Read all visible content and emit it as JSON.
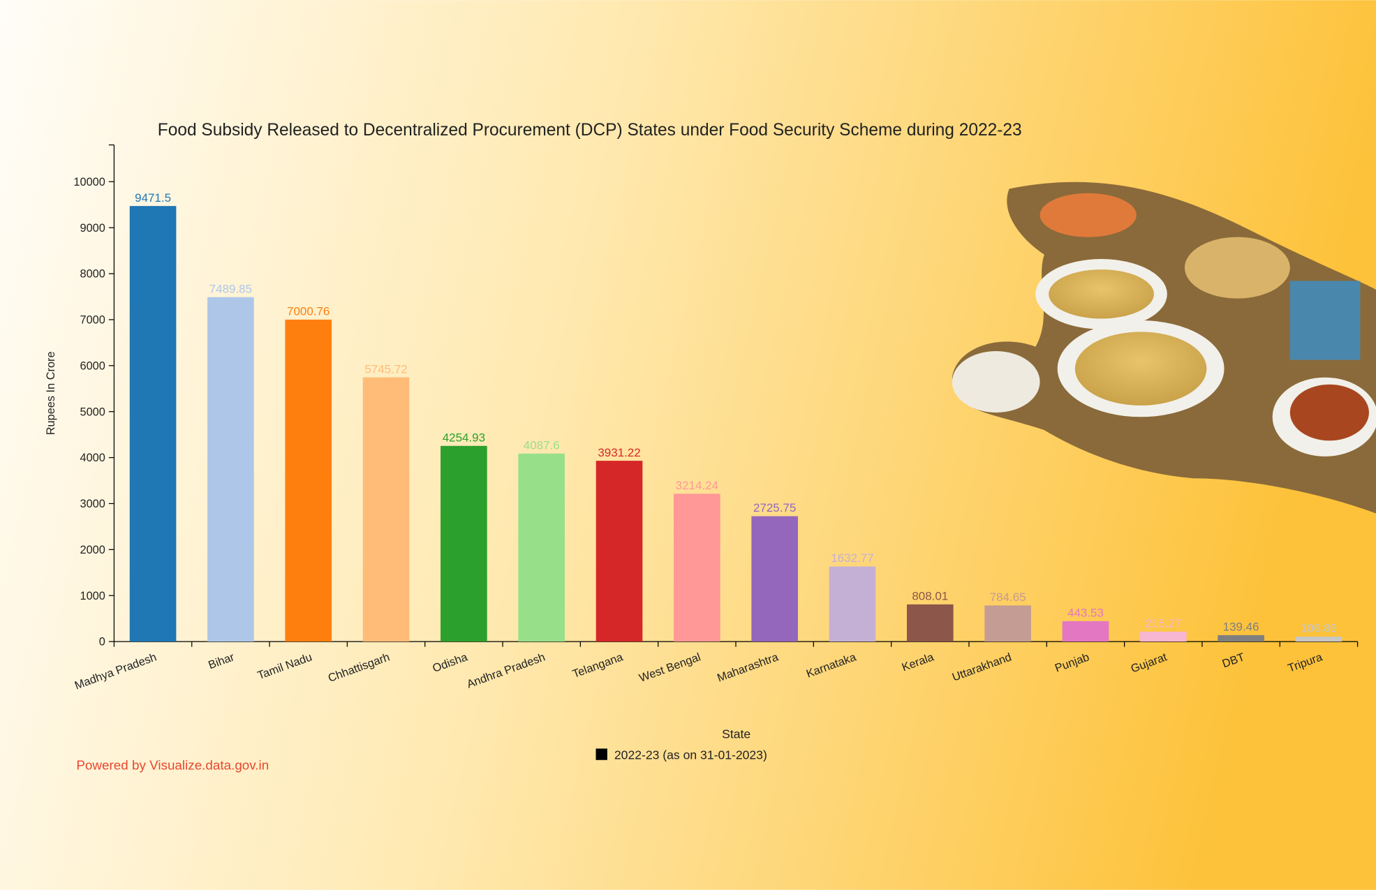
{
  "chart_data": {
    "type": "bar",
    "title": "Food Subsidy Released to Decentralized Procurement (DCP) States under Food Security Scheme during 2022-23",
    "x_label": "State",
    "y_label": "Rupees In Crore",
    "categories": [
      "Madhya Pradesh",
      "Bihar",
      "Tamil Nadu",
      "Chhattisgarh",
      "Odisha",
      "Andhra Pradesh",
      "Telangana",
      "West Bengal",
      "Maharashtra",
      "Karnataka",
      "Kerala",
      "Uttarakhand",
      "Punjab",
      "Gujarat",
      "DBT",
      "Tripura"
    ],
    "series": [
      {
        "name": "2022-23 (as on 31-01-2023)",
        "color": "#000000",
        "values": [
          9471.5,
          7489.85,
          7000.76,
          5745.72,
          4254.93,
          4087.6,
          3931.22,
          3214.24,
          2725.75,
          1632.77,
          808.01,
          784.65,
          443.53,
          215.27,
          139.46,
          106.86
        ]
      }
    ],
    "colors": [
      "#1f77b4",
      "#aec7e8",
      "#ff7f0e",
      "#ffbb78",
      "#2ca02c",
      "#98df8a",
      "#d62728",
      "#ff9896",
      "#9467bd",
      "#c5b0d5",
      "#8c564b",
      "#c49c94",
      "#e377c2",
      "#f7b6d2",
      "#7f7f7f",
      "#c7c7c7"
    ],
    "ylim": [
      0,
      10800
    ],
    "yticks": [
      0,
      1000,
      2000,
      3000,
      4000,
      5000,
      6000,
      7000,
      8000,
      9000,
      10000
    ],
    "legend_position": "bottom",
    "source": "Powered by Visualize.data.gov.in"
  }
}
